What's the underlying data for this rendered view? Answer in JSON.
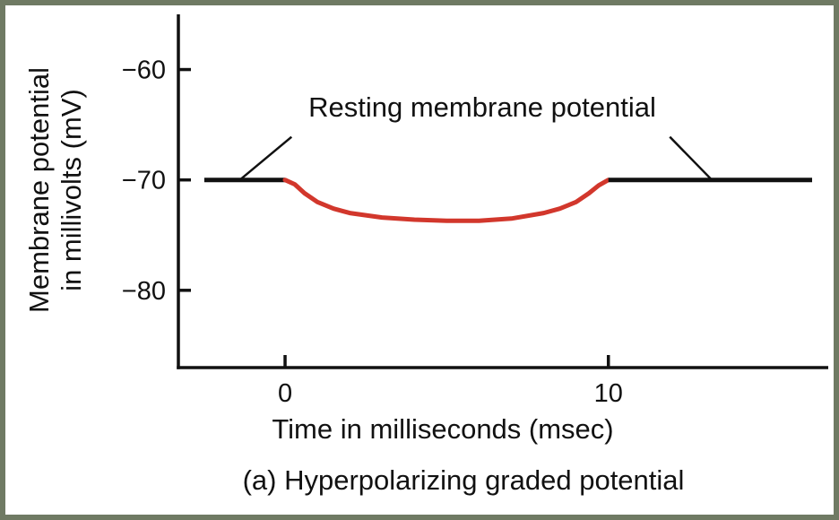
{
  "chart_data": {
    "type": "line",
    "title": "",
    "caption": "(a) Hyperpolarizing graded potential",
    "xlabel": "Time in milliseconds (msec)",
    "ylabel_line1": "Membrane potential",
    "ylabel_line2": "in millivolts (mV)",
    "xlim": [
      -3.3,
      16.8
    ],
    "ylim": [
      -87,
      -55
    ],
    "xticks": [
      0,
      10
    ],
    "xtick_labels": [
      "0",
      "10"
    ],
    "yticks": [
      -60,
      -70,
      -80
    ],
    "ytick_labels": [
      "−60",
      "−70",
      "−80"
    ],
    "grid": false,
    "series": [
      {
        "segment": "resting-before",
        "color": "#111111",
        "x": [
          -2.5,
          0
        ],
        "y": [
          -70,
          -70
        ]
      },
      {
        "segment": "hyperpolarization",
        "color": "#d2372c",
        "x": [
          0,
          0.3,
          0.6,
          1.0,
          1.5,
          2.0,
          3.0,
          4.0,
          5.0,
          6.0,
          7.0,
          8.0,
          8.5,
          9.0,
          9.4,
          9.7,
          10.0
        ],
        "y": [
          -70,
          -70.4,
          -71.2,
          -72.0,
          -72.6,
          -73.0,
          -73.4,
          -73.6,
          -73.7,
          -73.7,
          -73.5,
          -73.0,
          -72.6,
          -72.0,
          -71.2,
          -70.5,
          -70
        ]
      },
      {
        "segment": "resting-after",
        "color": "#111111",
        "x": [
          10,
          16.3
        ],
        "y": [
          -70,
          -70
        ]
      }
    ],
    "annotations": [
      {
        "text": "Resting membrane potential",
        "pointers": [
          {
            "from": [
              0.2,
              -66.1
            ],
            "to": [
              -1.4,
              -70
            ]
          },
          {
            "from": [
              11.9,
              -66.1
            ],
            "to": [
              13.2,
              -70
            ]
          }
        ]
      }
    ]
  }
}
